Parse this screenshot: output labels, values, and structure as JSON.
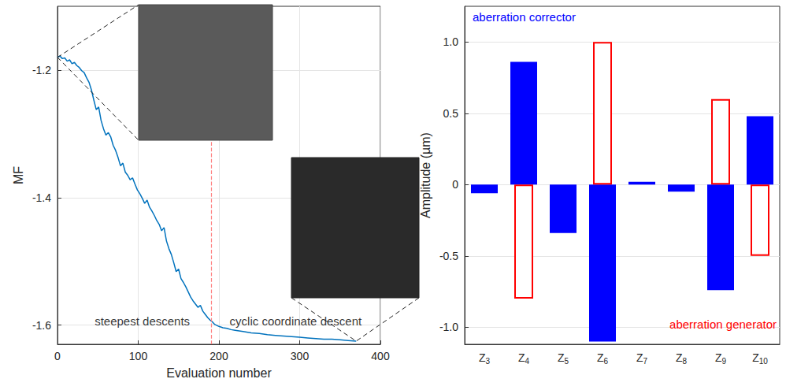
{
  "chart_data": [
    {
      "type": "line",
      "x_label": "Evaluation number",
      "y_label": "MF",
      "xlim": [
        0,
        400
      ],
      "xticks": [
        0,
        100,
        200,
        300,
        400
      ],
      "ylim": [
        -1.63,
        -1.1
      ],
      "yticks": [
        -1.6,
        -1.4,
        -1.2
      ],
      "grid": true,
      "color": "#0072bd",
      "x": [
        0,
        3,
        6,
        9,
        12,
        15,
        18,
        21,
        24,
        27,
        30,
        33,
        36,
        39,
        42,
        45,
        48,
        51,
        54,
        57,
        60,
        63,
        66,
        69,
        72,
        75,
        78,
        81,
        84,
        87,
        90,
        93,
        96,
        99,
        102,
        105,
        108,
        111,
        114,
        117,
        120,
        123,
        126,
        129,
        132,
        135,
        138,
        141,
        144,
        147,
        150,
        153,
        156,
        159,
        162,
        165,
        168,
        171,
        174,
        177,
        180,
        183,
        186,
        189,
        192,
        195,
        200,
        205,
        210,
        215,
        220,
        225,
        230,
        240,
        250,
        260,
        270,
        280,
        290,
        300,
        310,
        320,
        330,
        340,
        350,
        360,
        370
      ],
      "values": [
        -1.18,
        -1.178,
        -1.182,
        -1.181,
        -1.186,
        -1.184,
        -1.19,
        -1.188,
        -1.193,
        -1.196,
        -1.201,
        -1.204,
        -1.212,
        -1.219,
        -1.231,
        -1.247,
        -1.262,
        -1.258,
        -1.279,
        -1.292,
        -1.302,
        -1.298,
        -1.305,
        -1.318,
        -1.326,
        -1.337,
        -1.35,
        -1.346,
        -1.36,
        -1.365,
        -1.372,
        -1.369,
        -1.379,
        -1.388,
        -1.394,
        -1.401,
        -1.409,
        -1.404,
        -1.415,
        -1.421,
        -1.428,
        -1.436,
        -1.442,
        -1.452,
        -1.447,
        -1.468,
        -1.48,
        -1.489,
        -1.502,
        -1.516,
        -1.512,
        -1.527,
        -1.533,
        -1.54,
        -1.548,
        -1.556,
        -1.562,
        -1.567,
        -1.572,
        -1.569,
        -1.578,
        -1.583,
        -1.588,
        -1.592,
        -1.595,
        -1.599,
        -1.602,
        -1.604,
        -1.605,
        -1.607,
        -1.608,
        -1.609,
        -1.61,
        -1.612,
        -1.613,
        -1.615,
        -1.616,
        -1.617,
        -1.618,
        -1.619,
        -1.62,
        -1.621,
        -1.622,
        -1.622,
        -1.623,
        -1.624,
        -1.625
      ],
      "divider": {
        "x": 190,
        "color": "#ff8080",
        "line_style": "dashed"
      },
      "annotations": [
        {
          "text": "steepest descents",
          "x": 105,
          "y": -1.594
        },
        {
          "text": "cyclic coordinate descent",
          "x": 295,
          "y": -1.594
        }
      ]
    },
    {
      "type": "bar",
      "y_label": "Amplitude (µm)",
      "categories": [
        "Z3",
        "Z4",
        "Z5",
        "Z6",
        "Z7",
        "Z8",
        "Z9",
        "Z10"
      ],
      "ylim": [
        -1.12,
        1.25
      ],
      "yticks": [
        {
          "value": -1,
          "label": "-1.0"
        },
        -0.5,
        0,
        0.5,
        {
          "value": 1,
          "label": "1.0"
        }
      ],
      "grid": true,
      "series": [
        {
          "name": "aberration corrector",
          "color": "#0000ff",
          "marker": "filled",
          "values": [
            -0.06,
            0.86,
            -0.34,
            -1.1,
            0.02,
            -0.05,
            -0.74,
            0.48
          ]
        },
        {
          "name": "aberration generator",
          "color": "#ff0000",
          "marker": "hollow",
          "values": [
            null,
            -0.8,
            null,
            1.0,
            null,
            null,
            0.6,
            -0.5
          ]
        }
      ]
    }
  ]
}
